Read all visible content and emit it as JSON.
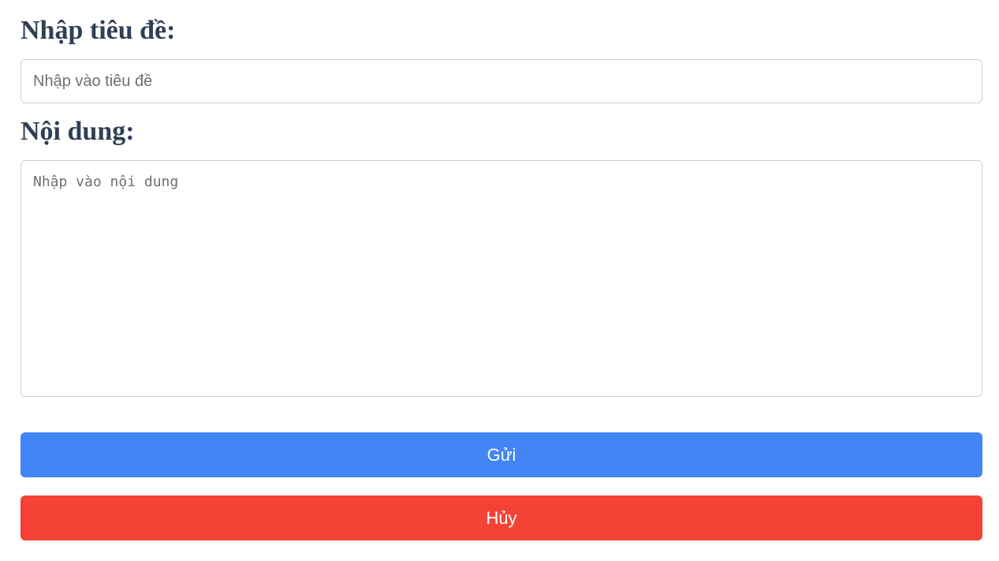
{
  "form": {
    "title_label": "Nhập tiêu đề:",
    "title_placeholder": "Nhập vào tiêu đề",
    "title_value": "",
    "content_label": "Nội dung:",
    "content_placeholder": "Nhập vào nội dung",
    "content_value": "",
    "submit_label": "Gửi",
    "cancel_label": "Hủy"
  },
  "colors": {
    "label_text": "#2f3f55",
    "submit_bg": "#4285f4",
    "cancel_bg": "#f44336",
    "border": "#cfcfcf"
  }
}
